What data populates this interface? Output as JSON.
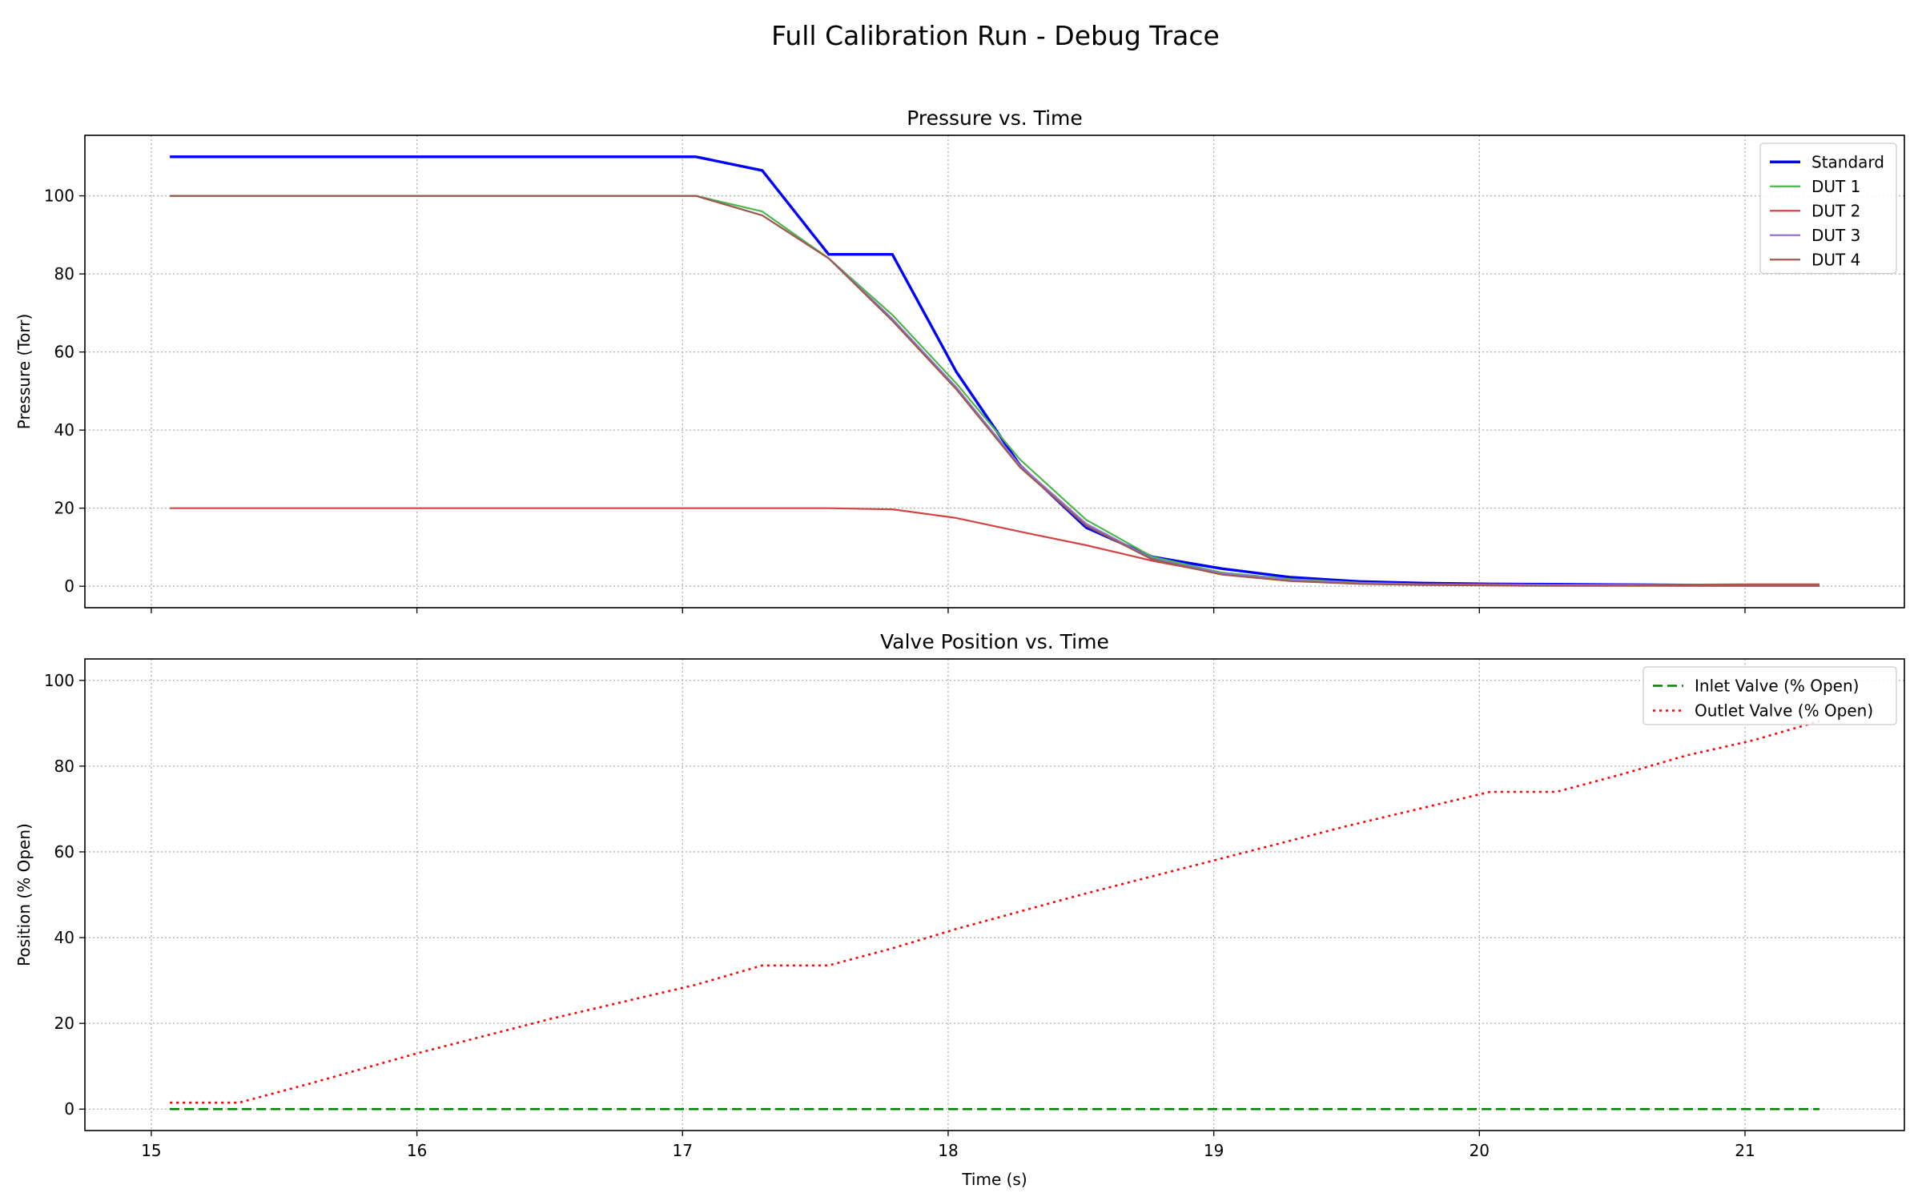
{
  "figure": {
    "title": "Full Calibration Run - Debug Trace"
  },
  "chart_data": [
    {
      "type": "line",
      "title": "Pressure vs. Time",
      "xlabel": "",
      "ylabel": "Pressure (Torr)",
      "xlim": [
        14.75,
        21.6
      ],
      "ylim": [
        -5.5,
        115.5
      ],
      "xticks": [
        15,
        16,
        17,
        18,
        19,
        20,
        21
      ],
      "yticks": [
        0,
        20,
        40,
        60,
        80,
        100
      ],
      "grid": true,
      "legend_position": "top-right",
      "series": [
        {
          "name": "Standard",
          "color": "#0000ff",
          "style": "solid",
          "width": 3.4,
          "x": [
            15.07,
            17.05,
            17.3,
            17.55,
            17.79,
            18.03,
            18.27,
            18.52,
            18.77,
            19.03,
            19.29,
            19.55,
            19.79,
            20.04,
            20.29,
            20.53,
            20.78,
            21.03,
            21.28
          ],
          "y": [
            110,
            110,
            106.5,
            85,
            85,
            55,
            31,
            15,
            7.5,
            4.5,
            2.3,
            1.2,
            0.8,
            0.6,
            0.5,
            0.4,
            0.3,
            0.3,
            0.3
          ]
        },
        {
          "name": "DUT 1",
          "color": "#4cb84c",
          "style": "solid",
          "width": 2.2,
          "x": [
            15.07,
            17.05,
            17.3,
            17.55,
            17.79,
            18.03,
            18.27,
            18.52,
            18.77,
            19.03,
            19.29,
            19.55,
            19.79,
            20.04,
            20.29,
            20.53,
            20.78,
            21.03,
            21.28
          ],
          "y": [
            100,
            100,
            96,
            84,
            69.5,
            52,
            32.5,
            17,
            7.5,
            3.5,
            1.8,
            0.9,
            0.5,
            0.4,
            0.3,
            0.3,
            0.2,
            0.2,
            0.2
          ]
        },
        {
          "name": "DUT 2",
          "color": "#d44444",
          "style": "solid",
          "width": 2.2,
          "x": [
            15.07,
            17.05,
            17.55,
            17.79,
            18.03,
            18.27,
            18.52,
            18.77,
            19.03,
            19.29,
            19.55,
            19.79,
            20.04,
            20.29,
            20.53,
            20.78,
            21.03,
            21.28
          ],
          "y": [
            20,
            20,
            20,
            19.7,
            17.5,
            14,
            10.5,
            6.5,
            3.2,
            1.5,
            0.8,
            0.5,
            0.5,
            0.4,
            0.4,
            0.4,
            0.5,
            0.5
          ]
        },
        {
          "name": "DUT 3",
          "color": "#9473d9",
          "style": "solid",
          "width": 2.2,
          "x": [
            15.07,
            17.05,
            17.3,
            17.55,
            17.79,
            18.03,
            18.27,
            18.52,
            18.77,
            19.03,
            19.29,
            19.55,
            19.79,
            20.04,
            20.29,
            20.53,
            20.78,
            21.03,
            21.28
          ],
          "y": [
            100,
            100,
            95,
            84,
            68.5,
            51,
            31,
            16,
            7,
            3.3,
            1.6,
            0.8,
            0.4,
            0.3,
            0.2,
            0.2,
            0.1,
            0.1,
            0.1
          ]
        },
        {
          "name": "DUT 4",
          "color": "#9c5a4c",
          "style": "solid",
          "width": 2.2,
          "x": [
            15.07,
            17.05,
            17.3,
            17.55,
            17.79,
            18.03,
            18.27,
            18.52,
            18.77,
            19.03,
            19.29,
            19.55,
            19.79,
            20.04,
            20.29,
            20.53,
            20.78,
            21.03,
            21.28
          ],
          "y": [
            100,
            100,
            95,
            84,
            68,
            50.5,
            30.5,
            15.5,
            6.8,
            3,
            1.3,
            0.6,
            0.3,
            0.2,
            0.1,
            0.1,
            0.1,
            0.1,
            0.1
          ]
        }
      ]
    },
    {
      "type": "line",
      "title": "Valve Position vs. Time",
      "xlabel": "Time (s)",
      "ylabel": "Position (% Open)",
      "xlim": [
        14.75,
        21.6
      ],
      "ylim": [
        -5,
        105
      ],
      "xticks": [
        15,
        16,
        17,
        18,
        19,
        20,
        21
      ],
      "yticks": [
        0,
        20,
        40,
        60,
        80,
        100
      ],
      "grid": true,
      "legend_position": "top-right",
      "series": [
        {
          "name": "Inlet Valve (% Open)",
          "color": "#008000",
          "style": "dashed",
          "width": 2.6,
          "x": [
            15.07,
            21.28
          ],
          "y": [
            0,
            0
          ]
        },
        {
          "name": "Outlet Valve (% Open)",
          "color": "#ff0000",
          "style": "dotted",
          "width": 2.6,
          "x": [
            15.07,
            15.33,
            15.6,
            16.0,
            16.5,
            17.05,
            17.3,
            17.55,
            17.79,
            18.03,
            18.5,
            19.0,
            19.5,
            20.04,
            20.29,
            20.53,
            20.78,
            21.03,
            21.28
          ],
          "y": [
            1.5,
            1.5,
            6,
            13,
            21,
            29,
            33.5,
            33.5,
            37.5,
            42,
            50,
            58,
            66,
            74,
            74,
            78,
            82.5,
            86,
            90.5
          ]
        }
      ]
    }
  ]
}
